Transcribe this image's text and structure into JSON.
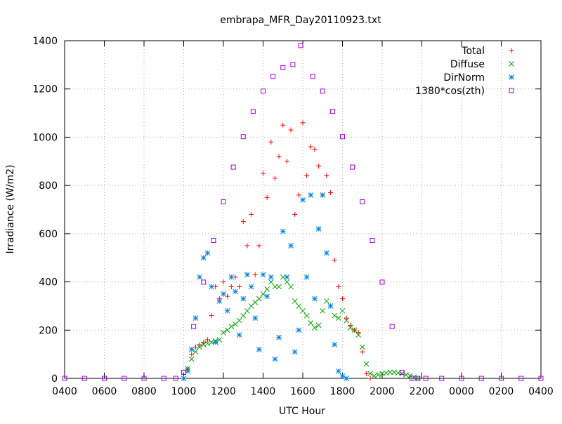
{
  "chart_data": {
    "type": "scatter",
    "title": "embrapa_MFR_Day20110923.txt",
    "xlabel": "UTC Hour",
    "ylabel": "Irradiance (W/m2)",
    "x_unit": "UTC hour of day (axis wraps past 2400)",
    "xlim": [
      4,
      28
    ],
    "ylim": [
      0,
      1400
    ],
    "grid": true,
    "legend_placement": "top-right",
    "x_tick_values": [
      4,
      6,
      8,
      10,
      12,
      14,
      16,
      18,
      20,
      22,
      24,
      26,
      28
    ],
    "x_tick_labels": [
      "0400",
      "0600",
      "0800",
      "1000",
      "1200",
      "1400",
      "1600",
      "1800",
      "2000",
      "2200",
      "0000",
      "0200",
      "0400"
    ],
    "y_tick_values": [
      0,
      200,
      400,
      600,
      800,
      1000,
      1200,
      1400
    ],
    "y_tick_labels": [
      "0",
      "200",
      "400",
      "600",
      "800",
      "1000",
      "1200",
      "1400"
    ],
    "series": [
      {
        "name": "Total",
        "marker": "+",
        "color": "#ff0000",
        "x": [
          10.0,
          10.2,
          10.4,
          10.6,
          10.8,
          11.0,
          11.2,
          11.4,
          11.6,
          11.8,
          12.0,
          12.2,
          12.4,
          12.6,
          12.8,
          13.0,
          13.2,
          13.4,
          13.6,
          13.8,
          14.0,
          14.2,
          14.4,
          14.6,
          14.8,
          15.0,
          15.2,
          15.4,
          15.6,
          15.8,
          16.0,
          16.2,
          16.4,
          16.6,
          16.8,
          17.0,
          17.2,
          17.4,
          17.6,
          17.8,
          18.0,
          18.2,
          18.4,
          18.6,
          18.8,
          19.0,
          19.2,
          19.4
        ],
        "y": [
          0,
          40,
          100,
          130,
          140,
          150,
          160,
          260,
          380,
          330,
          400,
          340,
          380,
          420,
          380,
          650,
          550,
          680,
          430,
          550,
          850,
          750,
          980,
          830,
          920,
          1050,
          900,
          1030,
          680,
          760,
          1060,
          840,
          960,
          950,
          880,
          760,
          840,
          770,
          490,
          380,
          330,
          250,
          220,
          200,
          190,
          110,
          20,
          0
        ]
      },
      {
        "name": "Diffuse",
        "marker": "x",
        "color": "#00a000",
        "x": [
          10.0,
          10.2,
          10.4,
          10.6,
          10.8,
          11.0,
          11.2,
          11.4,
          11.6,
          11.8,
          12.0,
          12.2,
          12.4,
          12.6,
          12.8,
          13.0,
          13.2,
          13.4,
          13.6,
          13.8,
          14.0,
          14.2,
          14.4,
          14.6,
          14.8,
          15.0,
          15.2,
          15.4,
          15.6,
          15.8,
          16.0,
          16.2,
          16.4,
          16.6,
          16.8,
          17.0,
          17.2,
          17.4,
          17.6,
          17.8,
          18.0,
          18.2,
          18.4,
          18.6,
          18.8,
          19.0,
          19.2,
          19.4,
          19.6,
          19.8,
          20.0,
          20.2,
          20.4,
          20.6,
          20.8,
          21.0,
          21.2,
          21.4,
          21.6,
          21.8
        ],
        "y": [
          0,
          40,
          80,
          110,
          130,
          140,
          145,
          150,
          155,
          160,
          190,
          200,
          215,
          225,
          240,
          260,
          280,
          300,
          315,
          330,
          350,
          370,
          400,
          380,
          380,
          420,
          400,
          380,
          320,
          300,
          280,
          260,
          230,
          210,
          220,
          280,
          320,
          300,
          260,
          250,
          280,
          240,
          210,
          200,
          180,
          130,
          60,
          20,
          10,
          15,
          20,
          22,
          25,
          25,
          22,
          20,
          15,
          10,
          5,
          0
        ]
      },
      {
        "name": "DirNorm",
        "marker": "*",
        "color": "#0080e0",
        "x": [
          10.0,
          10.2,
          10.4,
          10.6,
          10.8,
          11.0,
          11.2,
          11.4,
          11.6,
          11.8,
          12.0,
          12.2,
          12.4,
          12.6,
          12.8,
          13.0,
          13.2,
          13.4,
          13.6,
          13.8,
          14.0,
          14.2,
          14.4,
          14.6,
          14.8,
          15.0,
          15.2,
          15.4,
          15.6,
          15.8,
          16.0,
          16.2,
          16.4,
          16.6,
          16.8,
          17.0,
          17.2,
          17.4,
          17.6,
          17.8,
          18.0,
          18.2
        ],
        "y": [
          0,
          30,
          120,
          250,
          420,
          500,
          520,
          380,
          150,
          320,
          350,
          280,
          420,
          360,
          180,
          330,
          430,
          380,
          250,
          120,
          430,
          340,
          420,
          80,
          170,
          610,
          420,
          550,
          110,
          200,
          740,
          420,
          760,
          330,
          620,
          760,
          520,
          300,
          140,
          30,
          10,
          0
        ]
      },
      {
        "name": "1380*cos(zth)",
        "marker": "square",
        "color": "#a000e0",
        "x": [
          4,
          5,
          6,
          7,
          8,
          9,
          9.6,
          10.0,
          10.5,
          11.0,
          11.5,
          12.0,
          12.5,
          13.0,
          13.5,
          14.0,
          14.5,
          15.0,
          15.5,
          15.9,
          16.5,
          17.0,
          17.5,
          18.0,
          18.5,
          19.0,
          19.5,
          20.0,
          20.5,
          21.0,
          21.5,
          21.8,
          22.2,
          23,
          24,
          25,
          26,
          27,
          28
        ],
        "y": [
          0,
          0,
          0,
          0,
          0,
          0,
          0,
          25,
          215,
          399,
          572,
          732,
          876,
          1002,
          1107,
          1191,
          1252,
          1288,
          1301,
          1380,
          1252,
          1191,
          1107,
          1002,
          876,
          732,
          572,
          399,
          215,
          25,
          0,
          0,
          0,
          0,
          0,
          0,
          0,
          0,
          0
        ]
      }
    ]
  }
}
